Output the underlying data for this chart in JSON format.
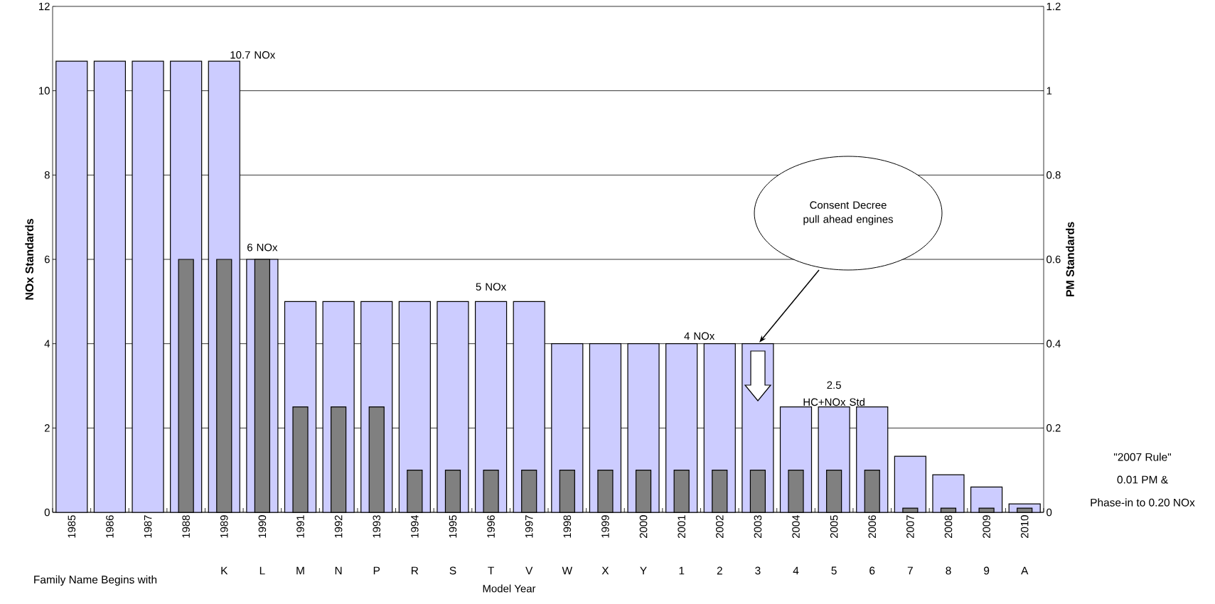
{
  "chart_data": {
    "type": "bar",
    "xlabel": "Model Year",
    "ylabel": "NOx Standards",
    "y2label": "PM Standards",
    "categories": [
      "1985",
      "1986",
      "1987",
      "1988",
      "1989",
      "1990",
      "1991",
      "1992",
      "1993",
      "1994",
      "1995",
      "1996",
      "1997",
      "1998",
      "1999",
      "2000",
      "2001",
      "2002",
      "2003",
      "2004",
      "2005",
      "2006",
      "2007",
      "2008",
      "2009",
      "2010"
    ],
    "series": [
      {
        "color": "#ccccff",
        "values": [
          10.7,
          10.7,
          10.7,
          10.7,
          10.7,
          6,
          5,
          5,
          5,
          5,
          5,
          5,
          5,
          4,
          4,
          4,
          4,
          4,
          4,
          2.5,
          2.5,
          2.5,
          1.33,
          0.89,
          0.6,
          0.2
        ]
      },
      {
        "color": "#808080",
        "axis": "y2",
        "values": [
          null,
          null,
          null,
          0.6,
          0.6,
          0.6,
          0.25,
          0.25,
          0.25,
          0.1,
          0.1,
          0.1,
          0.1,
          0.1,
          0.1,
          0.1,
          0.1,
          0.1,
          0.1,
          0.1,
          0.1,
          0.1,
          0.01,
          0.01,
          0.01,
          0.01
        ]
      }
    ],
    "ylim": [
      0,
      12
    ],
    "yticks": [
      0,
      2,
      4,
      6,
      8,
      10,
      12
    ],
    "y2lim": [
      0,
      1.2
    ],
    "y2ticks": [
      0,
      0.2,
      0.4,
      0.6,
      0.8,
      1,
      1.2
    ],
    "grid": "y",
    "legend": false,
    "annotations": [
      {
        "text": "10.7 NOx",
        "x": "1989",
        "y": 10.7
      },
      {
        "text": "6 NOx",
        "x": "1990",
        "y": 6
      },
      {
        "text": "5 NOx",
        "x": "1996",
        "y": 5
      },
      {
        "text": "4 NOx",
        "x": "2001",
        "y": 4
      },
      {
        "text": "2.5",
        "x": "2005",
        "y": 2.5
      },
      {
        "text": "HC+NOx Std",
        "x": "2005",
        "y": 2.5
      },
      "Consent Decree pull ahead engines",
      "Family Name Begins with",
      "K",
      "L",
      "M",
      "N",
      "P",
      "R",
      "S",
      "T",
      "V",
      "W",
      "X",
      "Y",
      "1",
      "2",
      "3",
      "4",
      "5",
      "6",
      "7",
      "8",
      "9",
      "A",
      "\"2007 Rule\"",
      "0.01 PM &",
      "Phase-in to 0.20 NOx"
    ]
  }
}
